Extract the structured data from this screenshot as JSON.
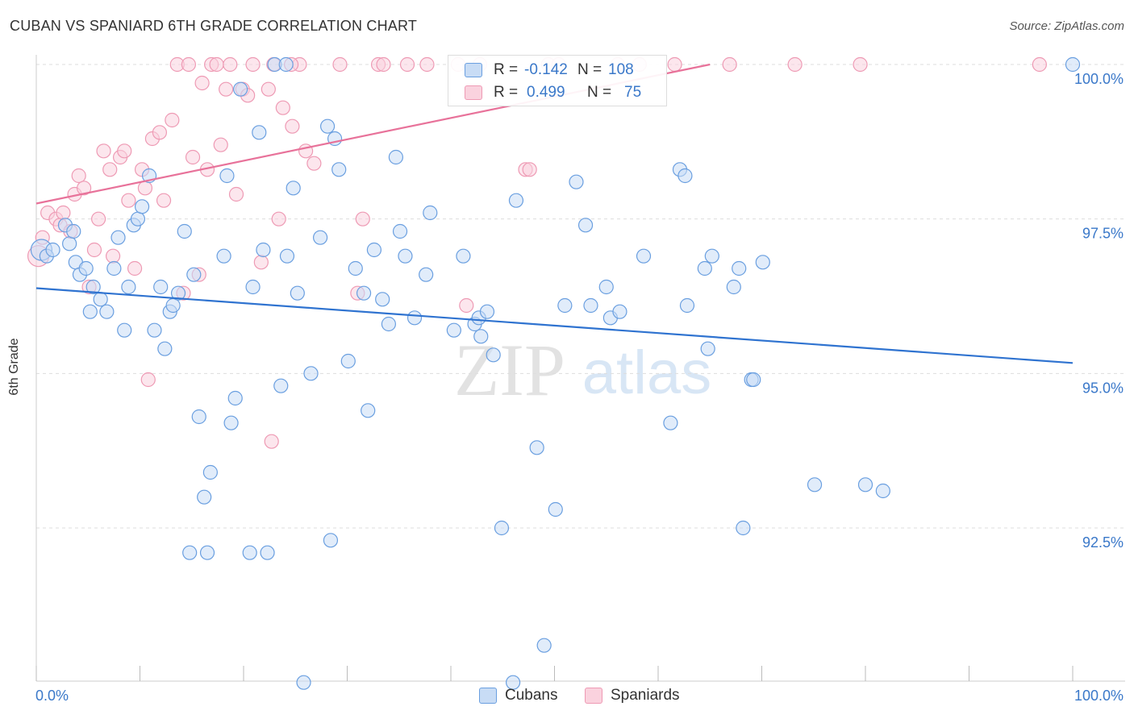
{
  "title": "CUBAN VS SPANIARD 6TH GRADE CORRELATION CHART",
  "source": "Source: ZipAtlas.com",
  "watermark": {
    "zip": "ZIP",
    "atlas": "atlas"
  },
  "legend": {
    "rows": [
      {
        "r_label": "R =",
        "r_value": "-0.142",
        "n_label": "N =",
        "n_value": "108",
        "color": "#6a9fe0"
      },
      {
        "r_label": "R =",
        "r_value": "0.499",
        "n_label": "N =",
        "n_value": "75",
        "color": "#f0a0b8"
      }
    ]
  },
  "bottom_legend": [
    "Cubans",
    "Spaniards"
  ],
  "colors": {
    "blue_fill": "#c8dcf5",
    "blue_stroke": "#6a9fe0",
    "blue_line": "#2f73d0",
    "pink_fill": "#fad2de",
    "pink_stroke": "#ee9ab4",
    "pink_line": "#e8729a",
    "tick_text": "#3a78c9"
  },
  "chart_data": {
    "type": "scatter",
    "title": "CUBAN VS SPANIARD 6TH GRADE CORRELATION CHART",
    "xlabel": "",
    "ylabel": "6th Grade",
    "xlim": [
      0,
      100
    ],
    "ylim": [
      90.0,
      100.2
    ],
    "x_tick_labels": [
      "0.0%",
      "100.0%"
    ],
    "y_ticks": [
      100.0,
      97.5,
      95.0,
      92.5
    ],
    "y_tick_labels": [
      "100.0%",
      "97.5%",
      "95.0%",
      "92.5%"
    ],
    "grid": true,
    "series": [
      {
        "name": "Cubans",
        "trend": {
          "x": [
            0,
            100
          ],
          "y": [
            96.38,
            95.17
          ]
        },
        "points": [
          [
            0.5,
            97.0
          ],
          [
            1.0,
            96.9
          ],
          [
            1.6,
            97.0
          ],
          [
            2.8,
            97.4
          ],
          [
            3.2,
            97.1
          ],
          [
            3.6,
            97.3
          ],
          [
            3.8,
            96.8
          ],
          [
            4.2,
            96.6
          ],
          [
            4.8,
            96.7
          ],
          [
            5.5,
            96.4
          ],
          [
            6.2,
            96.2
          ],
          [
            5.2,
            96.0
          ],
          [
            6.8,
            96.0
          ],
          [
            7.5,
            96.7
          ],
          [
            7.9,
            97.2
          ],
          [
            8.5,
            95.7
          ],
          [
            8.9,
            96.4
          ],
          [
            9.4,
            97.4
          ],
          [
            9.8,
            97.5
          ],
          [
            10.2,
            97.7
          ],
          [
            10.9,
            98.2
          ],
          [
            11.4,
            95.7
          ],
          [
            12.0,
            96.4
          ],
          [
            12.4,
            95.4
          ],
          [
            12.9,
            96.0
          ],
          [
            13.2,
            96.1
          ],
          [
            13.7,
            96.3
          ],
          [
            14.3,
            97.3
          ],
          [
            15.2,
            96.6
          ],
          [
            15.7,
            94.3
          ],
          [
            16.2,
            93.0
          ],
          [
            16.8,
            93.4
          ],
          [
            16.5,
            92.1
          ],
          [
            14.8,
            92.1
          ],
          [
            18.1,
            96.9
          ],
          [
            18.4,
            98.2
          ],
          [
            18.8,
            94.2
          ],
          [
            19.2,
            94.6
          ],
          [
            19.7,
            99.6
          ],
          [
            20.6,
            92.1
          ],
          [
            20.9,
            96.4
          ],
          [
            21.5,
            98.9
          ],
          [
            21.9,
            97.0
          ],
          [
            22.3,
            92.1
          ],
          [
            23.0,
            100.0
          ],
          [
            23.6,
            94.8
          ],
          [
            24.1,
            100.0
          ],
          [
            24.2,
            96.9
          ],
          [
            24.8,
            98.0
          ],
          [
            25.2,
            96.3
          ],
          [
            25.8,
            90.0
          ],
          [
            26.5,
            95.0
          ],
          [
            27.4,
            97.2
          ],
          [
            28.1,
            99.0
          ],
          [
            28.4,
            92.3
          ],
          [
            28.8,
            98.8
          ],
          [
            29.2,
            98.3
          ],
          [
            30.1,
            95.2
          ],
          [
            30.8,
            96.7
          ],
          [
            31.6,
            96.3
          ],
          [
            32.0,
            94.4
          ],
          [
            32.6,
            97.0
          ],
          [
            33.4,
            96.2
          ],
          [
            34.0,
            95.8
          ],
          [
            34.7,
            98.5
          ],
          [
            35.1,
            97.3
          ],
          [
            35.6,
            96.9
          ],
          [
            36.5,
            95.9
          ],
          [
            37.6,
            96.6
          ],
          [
            40.3,
            95.7
          ],
          [
            41.2,
            96.9
          ],
          [
            42.3,
            95.8
          ],
          [
            42.7,
            95.9
          ],
          [
            42.9,
            95.6
          ],
          [
            43.5,
            96.0
          ],
          [
            44.1,
            95.3
          ],
          [
            44.9,
            92.5
          ],
          [
            46.0,
            90.0
          ],
          [
            46.3,
            97.8
          ],
          [
            48.3,
            93.8
          ],
          [
            49.0,
            90.6
          ],
          [
            50.1,
            92.8
          ],
          [
            51.0,
            96.1
          ],
          [
            52.1,
            98.1
          ],
          [
            53.0,
            97.4
          ],
          [
            53.5,
            96.1
          ],
          [
            55.0,
            96.4
          ],
          [
            55.4,
            95.9
          ],
          [
            56.3,
            96.0
          ],
          [
            58.6,
            96.9
          ],
          [
            61.2,
            94.2
          ],
          [
            62.1,
            98.3
          ],
          [
            62.6,
            98.2
          ],
          [
            62.8,
            96.1
          ],
          [
            64.5,
            96.7
          ],
          [
            64.8,
            95.4
          ],
          [
            65.2,
            96.9
          ],
          [
            67.3,
            96.4
          ],
          [
            67.8,
            96.7
          ],
          [
            68.2,
            92.5
          ],
          [
            69.0,
            94.9
          ],
          [
            69.2,
            94.9
          ],
          [
            70.1,
            96.8
          ],
          [
            75.1,
            93.2
          ],
          [
            80.0,
            93.2
          ],
          [
            81.7,
            93.1
          ],
          [
            100.0,
            100.0
          ],
          [
            38.0,
            97.6
          ]
        ]
      },
      {
        "name": "Spaniards",
        "trend": {
          "x": [
            0,
            65
          ],
          "y": [
            97.75,
            100.0
          ]
        },
        "points": [
          [
            0.2,
            96.9
          ],
          [
            0.6,
            97.2
          ],
          [
            1.1,
            97.6
          ],
          [
            1.9,
            97.5
          ],
          [
            2.3,
            97.4
          ],
          [
            2.6,
            97.6
          ],
          [
            3.3,
            97.3
          ],
          [
            3.7,
            97.9
          ],
          [
            4.1,
            98.2
          ],
          [
            4.6,
            98.0
          ],
          [
            5.1,
            96.4
          ],
          [
            5.6,
            97.0
          ],
          [
            6.0,
            97.5
          ],
          [
            6.5,
            98.6
          ],
          [
            7.1,
            98.3
          ],
          [
            7.4,
            96.9
          ],
          [
            8.1,
            98.5
          ],
          [
            8.5,
            98.6
          ],
          [
            8.9,
            97.8
          ],
          [
            9.5,
            96.7
          ],
          [
            10.2,
            98.3
          ],
          [
            10.8,
            94.9
          ],
          [
            11.2,
            98.8
          ],
          [
            11.9,
            98.9
          ],
          [
            12.3,
            97.8
          ],
          [
            13.1,
            99.1
          ],
          [
            13.6,
            100.0
          ],
          [
            14.2,
            96.3
          ],
          [
            14.7,
            100.0
          ],
          [
            15.1,
            98.5
          ],
          [
            15.7,
            96.6
          ],
          [
            16.0,
            99.7
          ],
          [
            16.5,
            98.3
          ],
          [
            16.9,
            100.0
          ],
          [
            17.4,
            100.0
          ],
          [
            17.8,
            98.7
          ],
          [
            18.3,
            99.6
          ],
          [
            18.7,
            100.0
          ],
          [
            19.3,
            97.9
          ],
          [
            19.9,
            99.6
          ],
          [
            20.4,
            99.5
          ],
          [
            20.9,
            100.0
          ],
          [
            21.7,
            96.8
          ],
          [
            22.4,
            99.6
          ],
          [
            22.9,
            100.0
          ],
          [
            23.4,
            97.5
          ],
          [
            23.8,
            99.3
          ],
          [
            24.7,
            99.0
          ],
          [
            25.4,
            100.0
          ],
          [
            26.0,
            98.6
          ],
          [
            26.8,
            98.4
          ],
          [
            22.7,
            93.9
          ],
          [
            29.3,
            100.0
          ],
          [
            31.0,
            96.3
          ],
          [
            31.5,
            97.5
          ],
          [
            33.0,
            100.0
          ],
          [
            33.5,
            100.0
          ],
          [
            35.8,
            100.0
          ],
          [
            37.7,
            100.0
          ],
          [
            40.7,
            100.0
          ],
          [
            41.5,
            96.1
          ],
          [
            42.8,
            100.0
          ],
          [
            47.2,
            98.3
          ],
          [
            47.6,
            98.3
          ],
          [
            49.4,
            100.0
          ],
          [
            50.4,
            100.0
          ],
          [
            56.1,
            100.0
          ],
          [
            58.2,
            100.0
          ],
          [
            61.6,
            100.0
          ],
          [
            66.9,
            100.0
          ],
          [
            73.2,
            100.0
          ],
          [
            79.5,
            100.0
          ],
          [
            96.8,
            100.0
          ],
          [
            24.6,
            100.0
          ],
          [
            10.5,
            98.0
          ]
        ]
      }
    ]
  }
}
